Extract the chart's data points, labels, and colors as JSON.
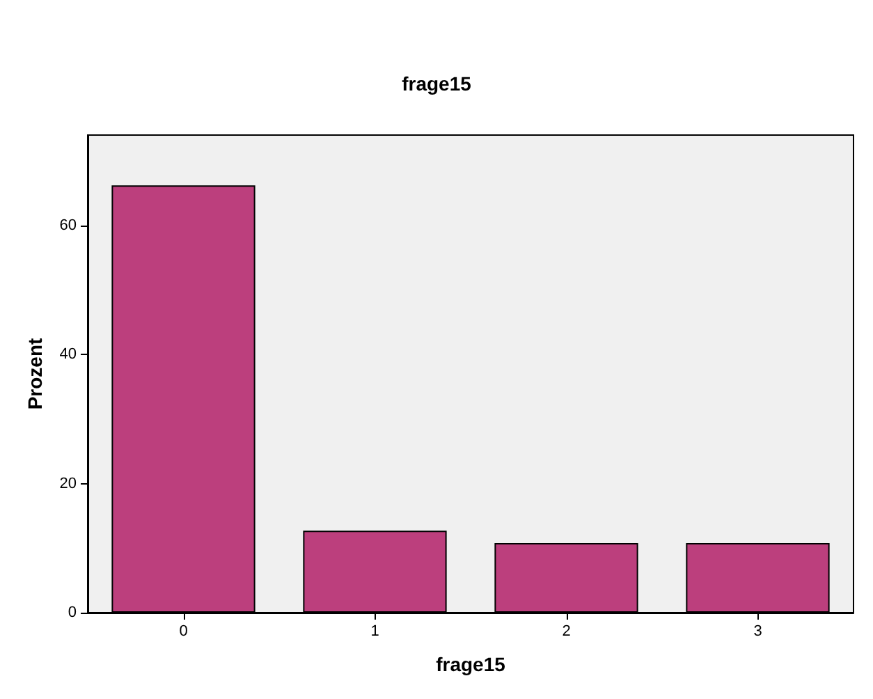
{
  "chart_data": {
    "type": "bar",
    "title": "frage15",
    "xlabel": "frage15",
    "ylabel": "Prozent",
    "categories": [
      "0",
      "1",
      "2",
      "3"
    ],
    "values": [
      66.2,
      12.7,
      10.8,
      10.8
    ],
    "color": "#bc3f7d",
    "ylim": [
      0,
      74
    ],
    "yticks": [
      0,
      20,
      40,
      60
    ],
    "grid": false
  }
}
